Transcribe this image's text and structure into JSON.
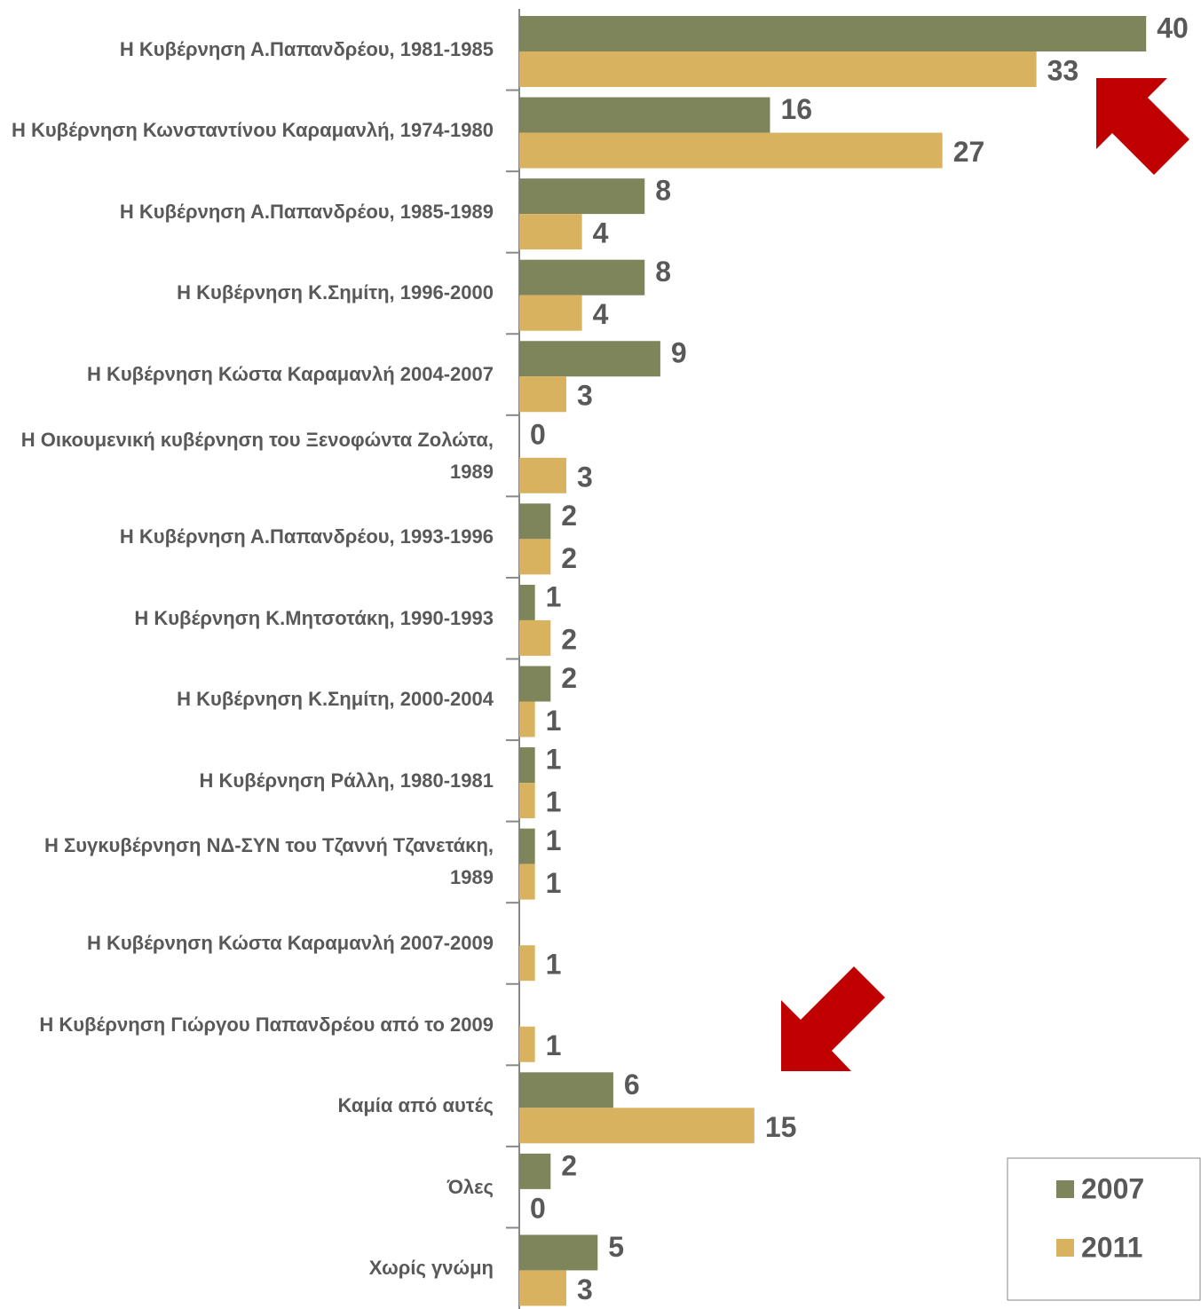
{
  "chart_data": {
    "type": "bar",
    "orientation": "horizontal",
    "categories": [
      "Η Κυβέρνηση Α.Παπανδρέου, 1981-1985",
      "Η Κυβέρνηση Κωνσταντίνου Καραμανλή, 1974-1980",
      "Η Κυβέρνηση Α.Παπανδρέου, 1985-1989",
      "Η Κυβέρνηση Κ.Σημίτη, 1996-2000",
      "Η Κυβέρνηση Κώστα Καραμανλή 2004-2007",
      "Η Οικουμενική κυβέρνηση του Ξενοφώντα Ζολώτα, 1989",
      "Η Κυβέρνηση Α.Παπανδρέου, 1993-1996",
      "Η Κυβέρνηση Κ.Μητσοτάκη, 1990-1993",
      "Η Κυβέρνηση Κ.Σημίτη, 2000-2004",
      "Η Κυβέρνηση Ράλλη, 1980-1981",
      "Η Συγκυβέρνηση ΝΔ-ΣΥΝ του Τζαννή Τζανετάκη, 1989",
      "Η Κυβέρνηση Κώστα Καραμανλή 2007-2009",
      "Η Κυβέρνηση Γιώργου Παπανδρέου από το 2009",
      "Καμία από αυτές",
      "Όλες",
      "Χωρίς γνώμη"
    ],
    "series": [
      {
        "name": "2007",
        "color": "#7f855a",
        "values": [
          40,
          16,
          8,
          8,
          9,
          0,
          2,
          1,
          2,
          1,
          1,
          null,
          null,
          6,
          2,
          5
        ]
      },
      {
        "name": "2011",
        "color": "#d9b25f",
        "values": [
          33,
          27,
          4,
          4,
          3,
          3,
          2,
          2,
          1,
          1,
          1,
          1,
          1,
          15,
          0,
          3
        ]
      }
    ],
    "xlim": [
      0,
      43.5
    ],
    "legend": "bottom-right"
  }
}
